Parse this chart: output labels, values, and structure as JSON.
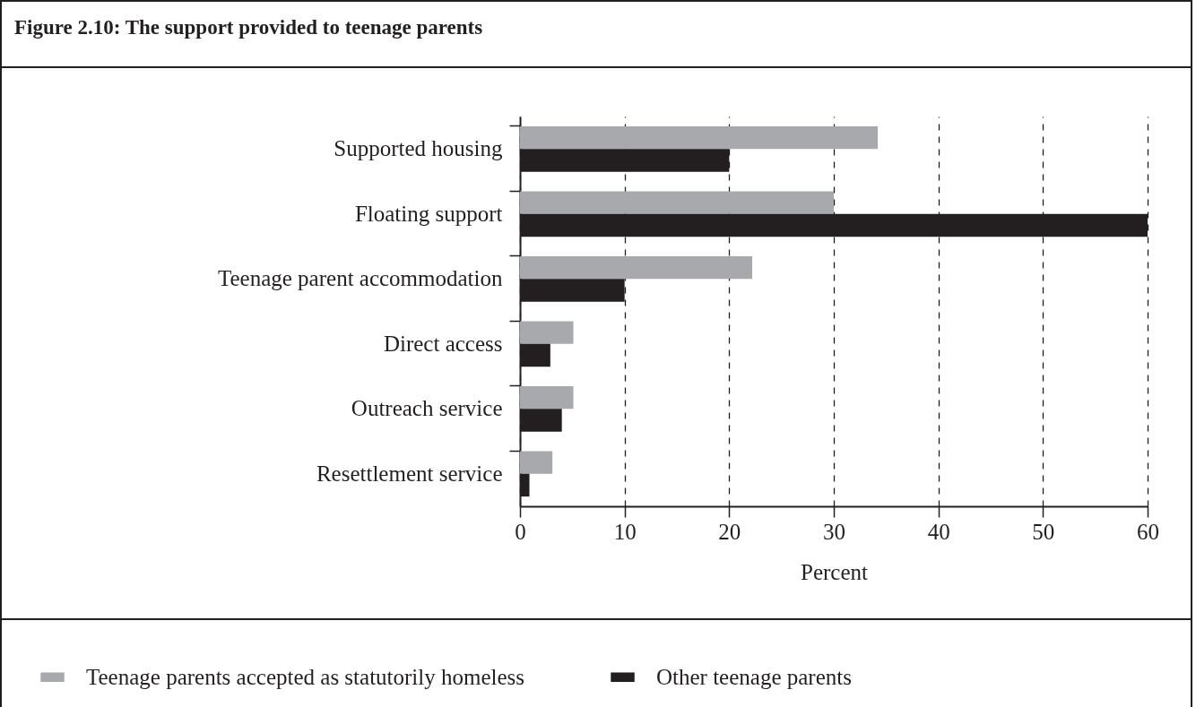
{
  "chart_data": {
    "type": "bar",
    "orientation": "horizontal",
    "title": "Figure 2.10: The support provided to teenage parents",
    "xlabel": "Percent",
    "categories": [
      "Supported housing",
      "Floating support",
      "Teenage parent accommodation",
      "Direct access",
      "Outreach service",
      "Resettlement service"
    ],
    "series": [
      {
        "name": "Teenage parents accepted as statutorily homeless",
        "color": "#a7a9ac",
        "values": [
          34.2,
          30,
          22.2,
          5.1,
          5.1,
          3.1
        ]
      },
      {
        "name": "Other teenage parents",
        "color": "#231f20",
        "values": [
          20,
          60,
          10,
          2.9,
          4.0,
          0.9
        ]
      }
    ],
    "xlim": [
      0,
      60
    ],
    "xticks": [
      0,
      10,
      20,
      30,
      40,
      50,
      60
    ],
    "grid": "x",
    "legend": "bottom"
  }
}
